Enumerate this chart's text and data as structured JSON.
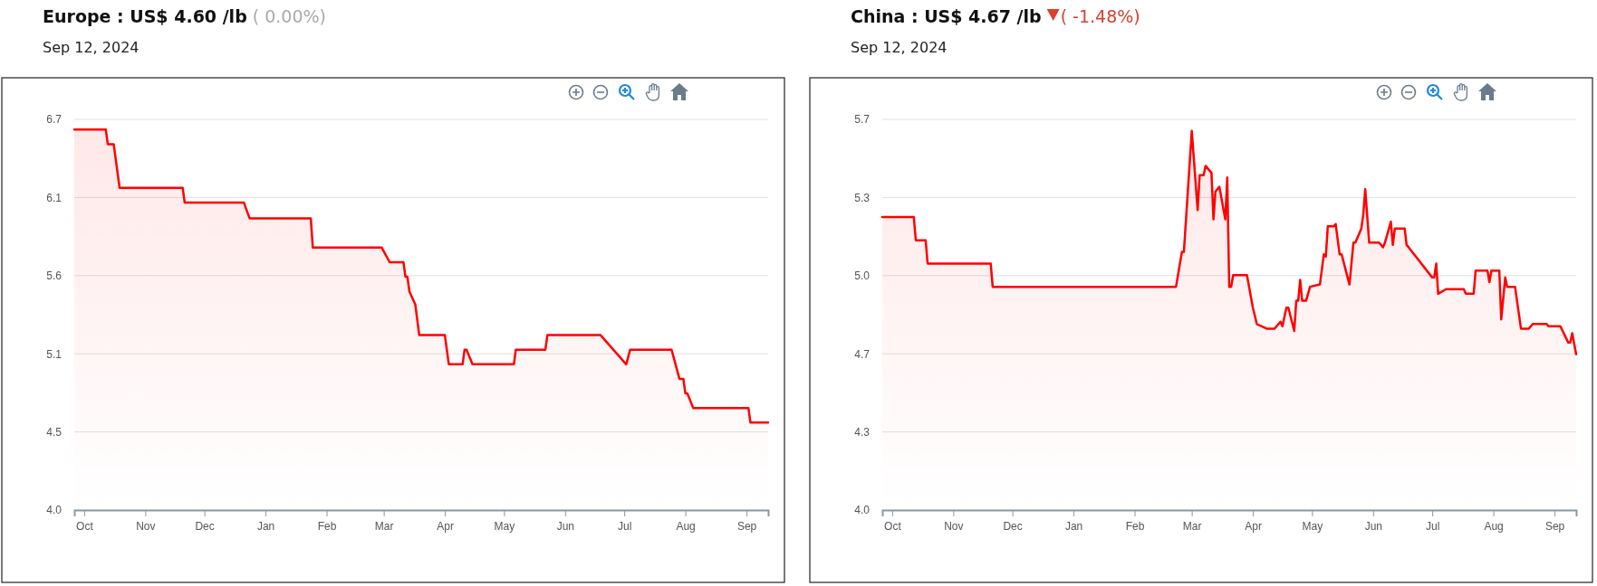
{
  "chart_data": [
    {
      "type": "area",
      "title": "Europe : US$ 4.60 /lb",
      "subtitle": "Sep 12, 2024",
      "annotations": [
        "( 0.00%)"
      ],
      "xlim": [
        "2023-09-26",
        "2024-09-12"
      ],
      "xticks": [
        {
          "value": "2023-10-01",
          "label": "Oct"
        },
        {
          "value": "2023-11-01",
          "label": "Nov"
        },
        {
          "value": "2023-12-01",
          "label": "Dec"
        },
        {
          "value": "2024-01-01",
          "label": "Jan"
        },
        {
          "value": "2024-02-01",
          "label": "Feb"
        },
        {
          "value": "2024-03-01",
          "label": "Mar"
        },
        {
          "value": "2024-04-01",
          "label": "Apr"
        },
        {
          "value": "2024-05-01",
          "label": "May"
        },
        {
          "value": "2024-06-01",
          "label": "Jun"
        },
        {
          "value": "2024-07-01",
          "label": "Jul"
        },
        {
          "value": "2024-08-01",
          "label": "Aug"
        },
        {
          "value": "2024-09-01",
          "label": "Sep"
        }
      ],
      "ylim": [
        4.0,
        6.68
      ],
      "yticks": [
        {
          "value": 4.0,
          "label": "4.0"
        },
        {
          "value": 4.536,
          "label": "4.5"
        },
        {
          "value": 5.072,
          "label": "5.1"
        },
        {
          "value": 5.608,
          "label": "5.6"
        },
        {
          "value": 6.144,
          "label": "6.1"
        },
        {
          "value": 6.68,
          "label": "6.7"
        }
      ],
      "grid": "y",
      "legend": false,
      "marker": "none",
      "line_style": "solid",
      "series": [
        {
          "color": "#ff0000",
          "x": [
            "2023-09-26",
            "2023-10-12",
            "2023-10-13",
            "2023-10-16",
            "2023-10-19",
            "2023-11-20",
            "2023-11-21",
            "2023-12-21",
            "2023-12-24",
            "2024-01-24",
            "2024-01-25",
            "2024-02-29",
            "2024-03-04",
            "2024-03-11",
            "2024-03-12",
            "2024-03-13",
            "2024-03-14",
            "2024-03-17",
            "2024-03-19",
            "2024-04-01",
            "2024-04-03",
            "2024-04-10",
            "2024-04-11",
            "2024-04-12",
            "2024-04-15",
            "2024-05-06",
            "2024-05-07",
            "2024-05-22",
            "2024-05-23",
            "2024-06-19",
            "2024-07-02",
            "2024-07-04",
            "2024-07-25",
            "2024-07-29",
            "2024-07-31",
            "2024-08-01",
            "2024-08-02",
            "2024-08-05",
            "2024-09-02",
            "2024-09-03",
            "2024-09-12"
          ],
          "values": [
            6.61,
            6.61,
            6.51,
            6.51,
            6.21,
            6.21,
            6.11,
            6.11,
            6.0,
            6.0,
            5.8,
            5.8,
            5.7,
            5.7,
            5.6,
            5.6,
            5.5,
            5.41,
            5.2,
            5.2,
            5.0,
            5.0,
            5.1,
            5.1,
            5.0,
            5.0,
            5.1,
            5.1,
            5.2,
            5.2,
            5.0,
            5.1,
            5.1,
            4.9,
            4.9,
            4.8,
            4.8,
            4.7,
            4.7,
            4.6,
            4.6
          ]
        }
      ]
    },
    {
      "type": "area",
      "title": "China : US$ 4.67 /lb",
      "subtitle": "Sep 12, 2024",
      "annotations": [
        "( -1.48%)"
      ],
      "xlim": [
        "2023-09-26",
        "2024-09-12"
      ],
      "xticks": [
        {
          "value": "2023-10-01",
          "label": "Oct"
        },
        {
          "value": "2023-11-01",
          "label": "Nov"
        },
        {
          "value": "2023-12-01",
          "label": "Dec"
        },
        {
          "value": "2024-01-01",
          "label": "Jan"
        },
        {
          "value": "2024-02-01",
          "label": "Feb"
        },
        {
          "value": "2024-03-01",
          "label": "Mar"
        },
        {
          "value": "2024-04-01",
          "label": "Apr"
        },
        {
          "value": "2024-05-01",
          "label": "May"
        },
        {
          "value": "2024-06-01",
          "label": "Jun"
        },
        {
          "value": "2024-07-01",
          "label": "Jul"
        },
        {
          "value": "2024-08-01",
          "label": "Aug"
        },
        {
          "value": "2024-09-01",
          "label": "Sep"
        }
      ],
      "ylim": [
        4.0,
        5.68
      ],
      "yticks": [
        {
          "value": 4.0,
          "label": "4.0"
        },
        {
          "value": 4.336,
          "label": "4.3"
        },
        {
          "value": 4.672,
          "label": "4.7"
        },
        {
          "value": 5.008,
          "label": "5.0"
        },
        {
          "value": 5.344,
          "label": "5.3"
        },
        {
          "value": 5.68,
          "label": "5.7"
        }
      ],
      "grid": "y",
      "legend": false,
      "marker": "none",
      "line_style": "solid",
      "series": [
        {
          "color": "#ff0000",
          "x": [
            "2023-09-26",
            "2023-10-12",
            "2023-10-13",
            "2023-10-18",
            "2023-10-19",
            "2023-11-20",
            "2023-11-21",
            "2024-02-22",
            "2024-02-25",
            "2024-02-26",
            "2024-03-01",
            "2024-03-04",
            "2024-03-05",
            "2024-03-07",
            "2024-03-08",
            "2024-03-11",
            "2024-03-12",
            "2024-03-13",
            "2024-03-15",
            "2024-03-18",
            "2024-03-19",
            "2024-03-20",
            "2024-03-21",
            "2024-03-22",
            "2024-03-29",
            "2024-04-01",
            "2024-04-03",
            "2024-04-08",
            "2024-04-12",
            "2024-04-15",
            "2024-04-16",
            "2024-04-18",
            "2024-04-19",
            "2024-04-22",
            "2024-04-23",
            "2024-04-24",
            "2024-04-25",
            "2024-04-26",
            "2024-04-28",
            "2024-04-30",
            "2024-05-05",
            "2024-05-07",
            "2024-05-08",
            "2024-05-09",
            "2024-05-12",
            "2024-05-13",
            "2024-05-15",
            "2024-05-16",
            "2024-05-20",
            "2024-05-22",
            "2024-05-23",
            "2024-05-26",
            "2024-05-27",
            "2024-05-28",
            "2024-05-30",
            "2024-06-04",
            "2024-06-06",
            "2024-06-07",
            "2024-06-10",
            "2024-06-11",
            "2024-06-12",
            "2024-06-17",
            "2024-06-18",
            "2024-06-19",
            "2024-07-01",
            "2024-07-02",
            "2024-07-03",
            "2024-07-04",
            "2024-07-08",
            "2024-07-17",
            "2024-07-18",
            "2024-07-22",
            "2024-07-23",
            "2024-07-29",
            "2024-07-30",
            "2024-07-31",
            "2024-08-04",
            "2024-08-05",
            "2024-08-07",
            "2024-08-08",
            "2024-08-12",
            "2024-08-15",
            "2024-08-19",
            "2024-08-21",
            "2024-08-28",
            "2024-08-29",
            "2024-09-04",
            "2024-09-08",
            "2024-09-09",
            "2024-09-10",
            "2024-09-12"
          ],
          "values": [
            5.26,
            5.26,
            5.16,
            5.16,
            5.06,
            5.06,
            4.96,
            4.96,
            5.11,
            5.11,
            5.63,
            5.29,
            5.44,
            5.44,
            5.48,
            5.45,
            5.25,
            5.37,
            5.39,
            5.25,
            5.43,
            4.96,
            4.96,
            5.01,
            5.01,
            4.87,
            4.8,
            4.78,
            4.78,
            4.81,
            4.79,
            4.87,
            4.87,
            4.77,
            4.9,
            4.9,
            4.99,
            4.9,
            4.9,
            4.96,
            4.97,
            5.1,
            5.09,
            5.22,
            5.22,
            5.23,
            5.1,
            5.1,
            4.97,
            5.15,
            5.15,
            5.21,
            5.27,
            5.38,
            5.15,
            5.15,
            5.13,
            5.15,
            5.24,
            5.14,
            5.21,
            5.21,
            5.14,
            5.13,
            5.0,
            5.0,
            5.06,
            4.93,
            4.95,
            4.95,
            4.93,
            4.93,
            5.03,
            5.03,
            4.98,
            5.03,
            5.03,
            4.82,
            5.0,
            4.96,
            4.96,
            4.78,
            4.78,
            4.8,
            4.8,
            4.79,
            4.79,
            4.72,
            4.72,
            4.76,
            4.67
          ]
        }
      ]
    }
  ]
}
